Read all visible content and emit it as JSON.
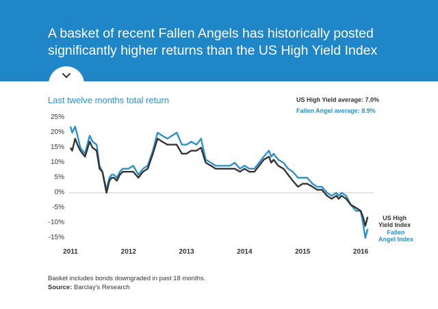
{
  "header": {
    "title_line1": "A basket of recent Fallen Angels has historically posted",
    "title_line2": "significantly higher returns than the US High Yield Index"
  },
  "toggle_icon": "chevron-down-icon",
  "colors": {
    "banner": "#1f86c8",
    "fallen_angel": "#2b8fcc",
    "high_yield": "#333333"
  },
  "chart_data": {
    "type": "line",
    "title": "Last twelve months total return",
    "averages": [
      "US High Yield average: 7.0%",
      "Fallen Angel average: 8.9%"
    ],
    "y_ticks": [
      "25%",
      "20%",
      "15%",
      "10%",
      "5%",
      "0%",
      "-5%",
      "-10%",
      "-15%"
    ],
    "x_ticks": [
      "2011",
      "2012",
      "2013",
      "2014",
      "2015",
      "2016"
    ],
    "ylim": [
      -15,
      25
    ],
    "xlim": [
      2011.0,
      2016.2
    ],
    "grid": false,
    "legend": "labels at line ends",
    "series": [
      {
        "name": "Fallen Angel Index",
        "label_line1": "Fallen",
        "label_line2": "Angel Index",
        "color": "#2b8fcc",
        "x": [
          2011.0,
          2011.03,
          2011.08,
          2011.12,
          2011.17,
          2011.25,
          2011.33,
          2011.38,
          2011.45,
          2011.5,
          2011.55,
          2011.62,
          2011.67,
          2011.71,
          2011.75,
          2011.8,
          2011.85,
          2011.9,
          2012.0,
          2012.08,
          2012.17,
          2012.25,
          2012.33,
          2012.42,
          2012.5,
          2012.58,
          2012.67,
          2012.75,
          2012.83,
          2012.92,
          2013.0,
          2013.08,
          2013.17,
          2013.25,
          2013.33,
          2013.42,
          2013.5,
          2013.54,
          2013.58,
          2013.67,
          2013.75,
          2013.83,
          2013.92,
          2014.0,
          2014.08,
          2014.17,
          2014.25,
          2014.33,
          2014.42,
          2014.46,
          2014.5,
          2014.58,
          2014.67,
          2014.75,
          2014.83,
          2014.92,
          2015.0,
          2015.08,
          2015.17,
          2015.25,
          2015.33,
          2015.42,
          2015.5,
          2015.58,
          2015.62,
          2015.67,
          2015.75,
          2015.83,
          2015.92,
          2016.0,
          2016.04,
          2016.08,
          2016.12
        ],
        "values": [
          22,
          20,
          22,
          19,
          15,
          13,
          19,
          17,
          16,
          9,
          7,
          1,
          5,
          6,
          6,
          5,
          7,
          8,
          8,
          9,
          6,
          8,
          9,
          14,
          20,
          19,
          18,
          19,
          20,
          16,
          16,
          17,
          16,
          18,
          11,
          10,
          9,
          9,
          9,
          9,
          9,
          10,
          8,
          9,
          8,
          8,
          10,
          12,
          14,
          12,
          13,
          11,
          10,
          8,
          7,
          5,
          5,
          5,
          3,
          2,
          2,
          0,
          -1,
          0,
          -1,
          0,
          -1,
          -4,
          -6,
          -6,
          -10,
          -15,
          -12
        ]
      },
      {
        "name": "US High Yield Index",
        "label_line1": "US High",
        "label_line2": "Yield Index",
        "color": "#333333",
        "x": [
          2011.0,
          2011.03,
          2011.08,
          2011.12,
          2011.17,
          2011.25,
          2011.33,
          2011.38,
          2011.45,
          2011.5,
          2011.55,
          2011.62,
          2011.67,
          2011.71,
          2011.75,
          2011.8,
          2011.85,
          2011.9,
          2012.0,
          2012.08,
          2012.17,
          2012.25,
          2012.33,
          2012.42,
          2012.5,
          2012.58,
          2012.67,
          2012.75,
          2012.83,
          2012.92,
          2013.0,
          2013.08,
          2013.17,
          2013.25,
          2013.33,
          2013.42,
          2013.5,
          2013.54,
          2013.58,
          2013.67,
          2013.75,
          2013.83,
          2013.92,
          2014.0,
          2014.08,
          2014.17,
          2014.25,
          2014.33,
          2014.42,
          2014.46,
          2014.5,
          2014.58,
          2014.67,
          2014.75,
          2014.83,
          2014.92,
          2015.0,
          2015.08,
          2015.17,
          2015.25,
          2015.33,
          2015.42,
          2015.5,
          2015.58,
          2015.62,
          2015.67,
          2015.75,
          2015.83,
          2015.92,
          2016.0,
          2016.04,
          2016.08,
          2016.12
        ],
        "values": [
          15,
          14,
          18,
          16,
          14,
          12,
          17,
          15,
          14,
          8,
          7,
          0,
          4,
          5,
          5,
          4,
          6,
          7,
          7,
          7,
          5,
          7,
          8,
          13,
          18,
          17,
          16,
          16,
          16,
          13,
          13,
          14,
          14,
          15,
          10,
          9,
          8,
          8,
          8,
          8,
          8,
          8,
          7,
          8,
          7,
          7,
          9,
          11,
          12,
          10,
          11,
          9,
          8,
          6,
          4,
          2,
          3,
          3,
          2,
          1,
          1,
          -1,
          -2,
          -1,
          -2,
          -1,
          -2,
          -4,
          -5,
          -6,
          -8,
          -11,
          -8
        ]
      }
    ]
  },
  "footnote": "Basket includes bonds downgraded in past 18 months.",
  "source": {
    "label": "Source:",
    "text": "Barclay's Research"
  }
}
